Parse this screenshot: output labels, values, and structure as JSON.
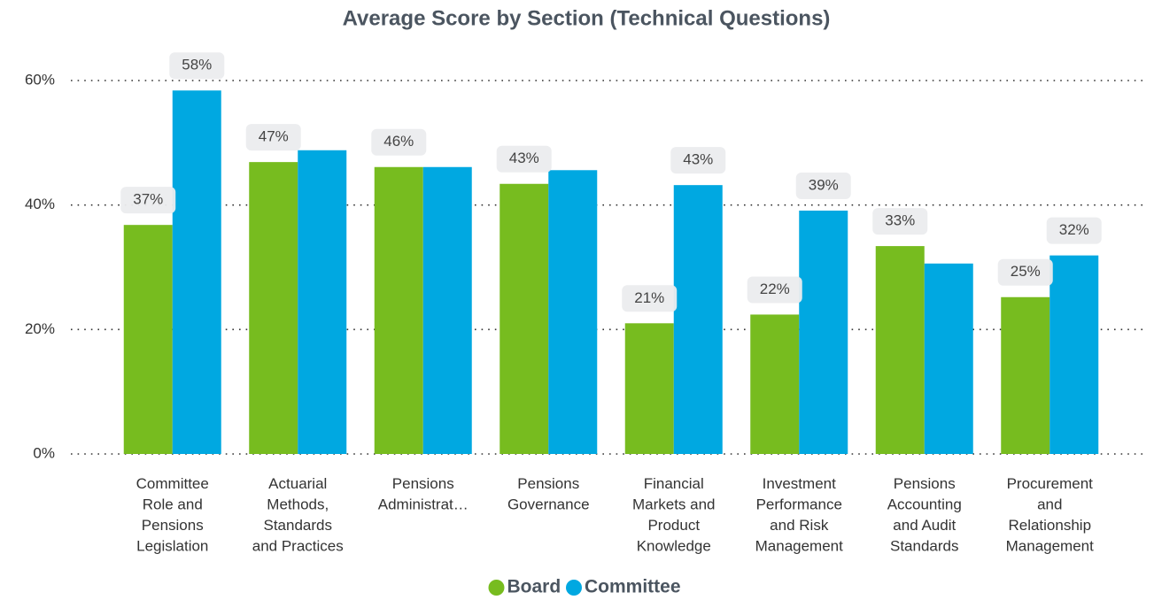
{
  "chart_data": {
    "type": "bar",
    "title": "Average Score by Section (Technical Questions)",
    "categories": [
      [
        "Committee",
        "Role and",
        "Pensions",
        "Legislation"
      ],
      [
        "Actuarial",
        "Methods,",
        "Standards",
        "and Practices"
      ],
      [
        "Pensions",
        "Administrat…"
      ],
      [
        "Pensions",
        "Governance"
      ],
      [
        "Financial",
        "Markets and",
        "Product",
        "Knowledge"
      ],
      [
        "Investment",
        "Performance",
        "and Risk",
        "Management"
      ],
      [
        "Pensions",
        "Accounting",
        "and Audit",
        "Standards"
      ],
      [
        "Procurement",
        "and",
        "Relationship",
        "Management"
      ]
    ],
    "series": [
      {
        "name": "Board",
        "color": "#77bc1f",
        "values": [
          36.8,
          46.9,
          46.1,
          43.4,
          21.0,
          22.4,
          33.4,
          25.2
        ],
        "value_labels": [
          "37%",
          "47%",
          "46%",
          "43%",
          "21%",
          "22%",
          "33%",
          "25%"
        ]
      },
      {
        "name": "Committee",
        "color": "#00a8e1",
        "values": [
          58.4,
          48.8,
          46.1,
          45.6,
          43.2,
          39.1,
          30.6,
          31.9
        ],
        "value_labels": [
          "58%",
          null,
          null,
          null,
          "43%",
          "39%",
          null,
          "32%"
        ]
      }
    ],
    "ylim": [
      0,
      60
    ],
    "yticks": [
      {
        "value": 0,
        "label": "0%"
      },
      {
        "value": 20,
        "label": "20%"
      },
      {
        "value": 40,
        "label": "40%"
      },
      {
        "value": 60,
        "label": "60%"
      }
    ],
    "grid": true,
    "legend": "bottom"
  }
}
